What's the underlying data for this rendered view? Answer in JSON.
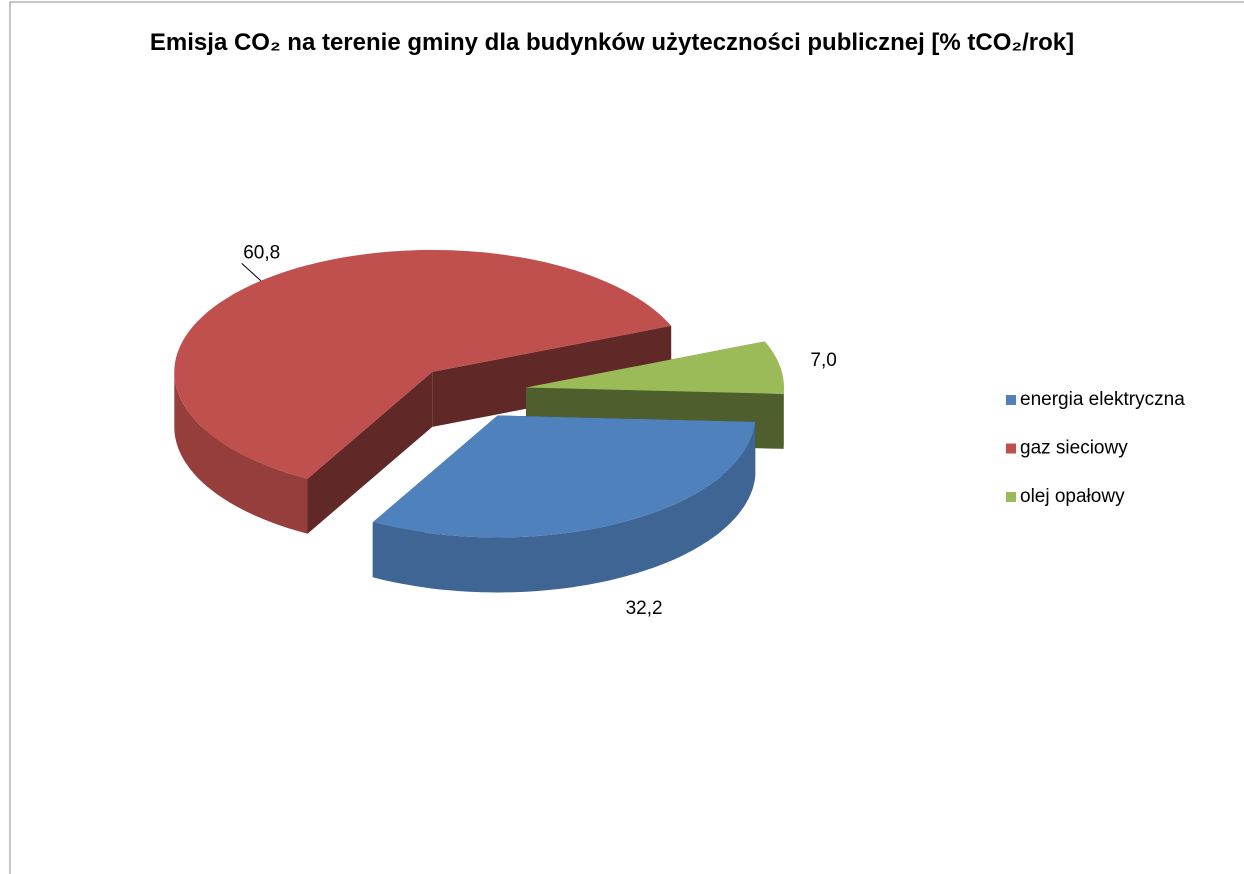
{
  "chart_data": {
    "type": "pie3d",
    "title": "Emisja CO₂ na terenie gminy dla budynków użyteczności publicznej [% tCO₂/rok]",
    "categories": [
      "energia elektryczna",
      "gaz sieciowy",
      "olej opałowy"
    ],
    "values": [
      32.2,
      60.8,
      7.0
    ],
    "value_labels": [
      "32,2",
      "60,8",
      "7,0"
    ],
    "colors": [
      "#4f81bd",
      "#c0504d",
      "#9bbb59"
    ],
    "legend": "right"
  }
}
